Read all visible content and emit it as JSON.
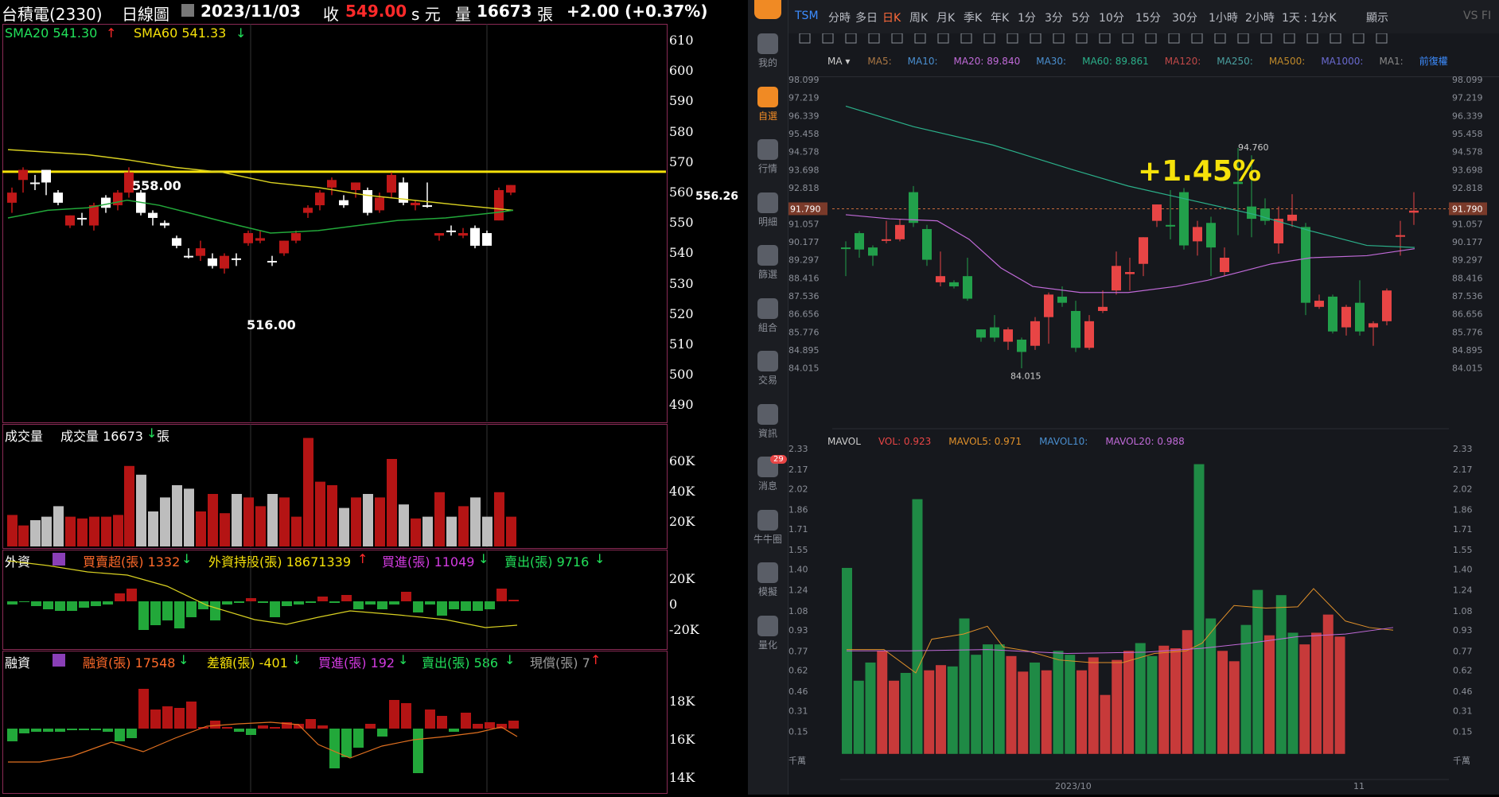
{
  "left": {
    "header": {
      "stock": "台積電(2330)",
      "chart_type": "日線圖",
      "date": "2023/11/03",
      "close_label": "收",
      "close": "549.00",
      "unit": "s 元",
      "vol_label": "量",
      "volume": "16673",
      "vol_unit": "張",
      "change": "+2.00 (+0.37%)"
    },
    "price_pane": {
      "sma20": "SMA20 541.30",
      "sma60": "SMA60 541.33",
      "high_label": "558.00",
      "low_label": "516.00",
      "line_label": "556.26",
      "axis": [
        "610",
        "600",
        "590",
        "580",
        "570",
        "560",
        "550",
        "540",
        "530",
        "520",
        "510",
        "500",
        "490"
      ]
    },
    "volume_pane": {
      "title": "成交量",
      "value_label": "成交量 16673",
      "unit": "張",
      "axis": [
        "60K",
        "40K",
        "20K"
      ]
    },
    "foreign_pane": {
      "title": "外資",
      "net": "買賣超(張) 1332",
      "holding": "外資持股(張) 18671339",
      "buy": "買進(張) 11049",
      "sell": "賣出(張) 9716",
      "axis": [
        "20K",
        "0",
        "-20K"
      ]
    },
    "margin_pane": {
      "title": "融資",
      "margin": "融資(張) 17548",
      "diff": "差額(張) -401",
      "buy": "買進(張) 192",
      "sell": "賣出(張) 586",
      "repay": "現償(張) 7",
      "axis": [
        "18K",
        "16K",
        "14K"
      ]
    }
  },
  "right": {
    "ticker": "TSM",
    "timeframes": [
      "分時",
      "多日",
      "日K",
      "周K",
      "月K",
      "季K",
      "年K",
      "1分",
      "3分",
      "5分",
      "10分",
      "15分",
      "30分",
      "1小時",
      "2小時",
      "1天 : 1分K",
      "顯示"
    ],
    "active_timeframe": "日K",
    "ma_bar": {
      "ma": "MA",
      "items": [
        {
          "label": "MA5:",
          "value": ""
        },
        {
          "label": "MA10:",
          "value": ""
        },
        {
          "label": "MA20:",
          "value": "89.840"
        },
        {
          "label": "MA30:",
          "value": ""
        },
        {
          "label": "MA60:",
          "value": "89.861"
        },
        {
          "label": "MA120:",
          "value": ""
        },
        {
          "label": "MA250:",
          "value": ""
        },
        {
          "label": "MA500:",
          "value": ""
        },
        {
          "label": "MA1000:",
          "value": ""
        },
        {
          "label": "MA1:",
          "value": ""
        }
      ],
      "adjust": "前復權"
    },
    "price_axis": [
      "98.099",
      "97.219",
      "96.339",
      "95.458",
      "94.578",
      "93.698",
      "92.818",
      "91.790",
      "91.057",
      "90.177",
      "89.297",
      "88.416",
      "87.536",
      "86.656",
      "85.776",
      "84.895",
      "84.015"
    ],
    "current_price": "91.790",
    "high_label": "94.760",
    "low_label": "84.015",
    "change_pct": "+1.45%",
    "vol_bar": {
      "name": "MAVOL",
      "vol": "VOL: 0.923",
      "mavol5": "MAVOL5: 0.971",
      "mavol10": "MAVOL10:",
      "mavol20": "MAVOL20: 0.988"
    },
    "vol_axis": [
      "2.33",
      "2.17",
      "2.02",
      "1.86",
      "1.71",
      "1.55",
      "1.40",
      "1.24",
      "1.08",
      "0.93",
      "0.77",
      "0.62",
      "0.46",
      "0.31",
      "0.15"
    ],
    "vol_unit": "千萬",
    "x_labels": [
      "2023/10",
      "11"
    ],
    "sidebar": [
      {
        "label": "我的",
        "icon": "user-icon"
      },
      {
        "label": "自選",
        "icon": "bar-chart-icon"
      },
      {
        "label": "行情",
        "icon": "trend-icon"
      },
      {
        "label": "明細",
        "icon": "detail-icon"
      },
      {
        "label": "篩選",
        "icon": "filter-icon"
      },
      {
        "label": "組合",
        "icon": "pie-icon"
      },
      {
        "label": "交易",
        "icon": "trade-icon"
      },
      {
        "label": "資訊",
        "icon": "news-icon"
      },
      {
        "label": "消息",
        "icon": "chat-icon"
      },
      {
        "label": "牛牛圈",
        "icon": "circle-icon"
      },
      {
        "label": "模擬",
        "icon": "gamepad-icon"
      },
      {
        "label": "量化",
        "icon": "code-icon"
      }
    ],
    "message_badge": "29",
    "top_right": "VS FI",
    "colors": {
      "up": "#e84545",
      "down": "#22a04b",
      "ma20": "#c06ad8",
      "ma60": "#2bb08a",
      "yellow": "#f5e10a"
    }
  }
}
